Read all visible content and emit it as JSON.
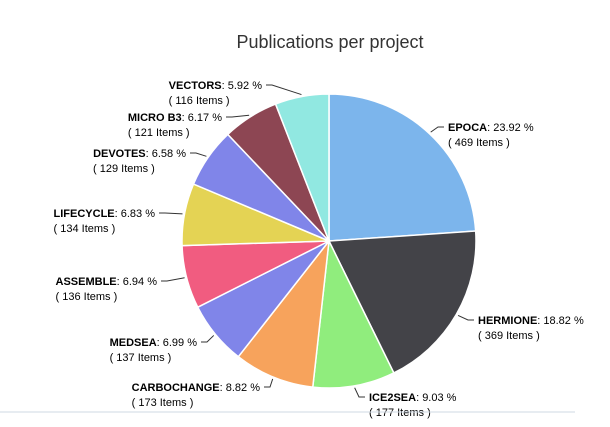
{
  "chart_data": {
    "type": "pie",
    "title": "Publications per project",
    "item_word": "Items",
    "slices": [
      {
        "name": "EPOCA",
        "percent": 23.92,
        "items": 469,
        "color": "#7cb5ec"
      },
      {
        "name": "HERMIONE",
        "percent": 18.82,
        "items": 369,
        "color": "#434348"
      },
      {
        "name": "ICE2SEA",
        "percent": 9.03,
        "items": 177,
        "color": "#90ed7d"
      },
      {
        "name": "CARBOCHANGE",
        "percent": 8.82,
        "items": 173,
        "color": "#f7a35c"
      },
      {
        "name": "MEDSEA",
        "percent": 6.99,
        "items": 137,
        "color": "#8085e9"
      },
      {
        "name": "ASSEMBLE",
        "percent": 6.94,
        "items": 136,
        "color": "#f15c80"
      },
      {
        "name": "LIFECYCLE",
        "percent": 6.83,
        "items": 134,
        "color": "#e4d354"
      },
      {
        "name": "DEVOTES",
        "percent": 6.58,
        "items": 129,
        "color": "#8085e9"
      },
      {
        "name": "MICRO B3",
        "percent": 6.17,
        "items": 121,
        "color": "#8d4653"
      },
      {
        "name": "VECTORS",
        "percent": 5.92,
        "items": 116,
        "color": "#91e8e1"
      }
    ]
  }
}
